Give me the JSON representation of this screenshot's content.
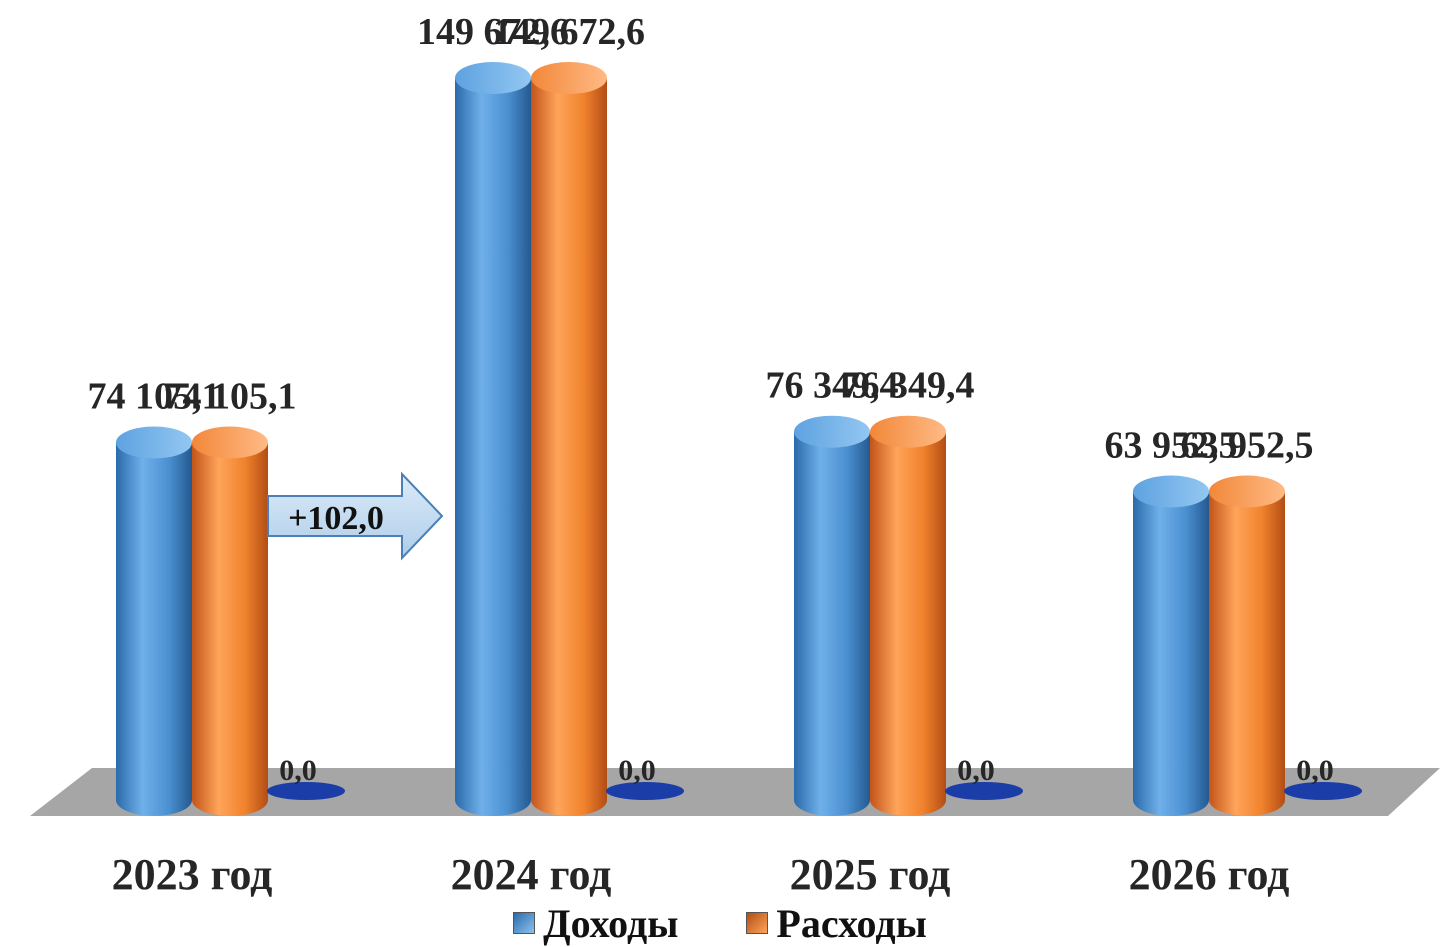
{
  "chart_data": {
    "type": "bar",
    "categories": [
      "2023 год",
      "2024 год",
      "2025 год",
      "2026 год"
    ],
    "series": [
      {
        "name": "Доходы",
        "values": [
          74105.1,
          149672.6,
          76349.4,
          63952.5
        ],
        "labels": [
          "74 105,1",
          "149 672,6",
          "76 349,4",
          "63 952,5"
        ],
        "color": "#4f93d4"
      },
      {
        "name": "Расходы",
        "values": [
          74105.1,
          149672.6,
          76349.4,
          63952.5
        ],
        "labels": [
          "74 105,1",
          "149 672,6",
          "76 349,4",
          "63 952,5"
        ],
        "color": "#f58a32"
      },
      {
        "values": [
          0,
          0,
          0,
          0
        ],
        "labels": [
          "0,0",
          "0,0",
          "0,0",
          "0,0"
        ],
        "color": "#1a3da8"
      }
    ],
    "annotation": {
      "text": "+102,0",
      "from": "2023 год",
      "to": "2024 год"
    },
    "legend": {
      "position": "bottom",
      "items": [
        "Доходы",
        "Расходы"
      ]
    },
    "style": "3d-cylinder",
    "ylim": [
      0,
      149672.6
    ]
  }
}
